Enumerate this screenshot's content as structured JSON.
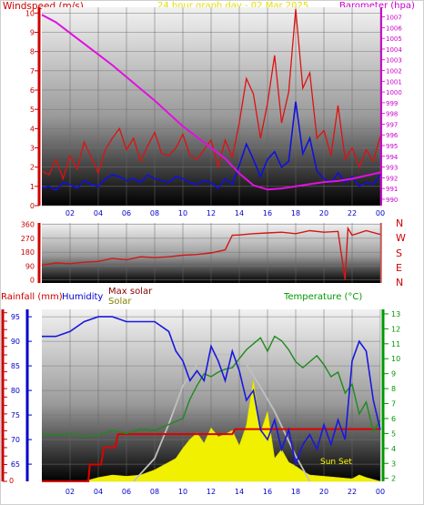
{
  "header": {
    "windspeed_label": "Windspeed (m/s)",
    "title": "24 hour graph day - 02 Mar 2025",
    "barometer_label": "Barometer (hpa)"
  },
  "compass_labels": [
    "N",
    "W",
    "S",
    "E",
    "N"
  ],
  "bottom_header": {
    "rainfall_label": "Rainfall (mm)",
    "humidity_label": "Humidity",
    "max_solar_label": "Max solar",
    "solar_label": "Solar",
    "temperature_label": "Temperature (°C)"
  },
  "sun_set_label": "Sun Set",
  "colors": {
    "wind": "#e01010",
    "gust_avg": "#1010e0",
    "barometer": "#e010e0",
    "direction": "#d01818",
    "rain": "#e00000",
    "humidity": "#1818e0",
    "temperature": "#1e8a1e",
    "solar": "#f0f000",
    "max_solar": "#c0c0c0",
    "axis_left": "#cc0000",
    "axis_right": "#cc00cc",
    "axis_time": "#0000cc",
    "temp_axis": "#009900"
  },
  "chart_data": [
    {
      "type": "line",
      "x_ticks": [
        "02",
        "04",
        "06",
        "08",
        "10",
        "12",
        "14",
        "16",
        "18",
        "20",
        "22",
        "00"
      ],
      "y_left_ticks": [
        "0",
        "1",
        "2",
        "3",
        "4",
        "5",
        "6",
        "7",
        "8",
        "9",
        "10"
      ],
      "y_left_range": [
        0,
        10.3
      ],
      "y_right_ticks": [
        "990",
        "991",
        "992",
        "993",
        "994",
        "995",
        "996",
        "997",
        "998",
        "999",
        "1000",
        "1001",
        "1002",
        "1003",
        "1004",
        "1005",
        "1006",
        "1007"
      ],
      "y_right_range": [
        989.4,
        1007.9
      ],
      "series": [
        {
          "name": "Windspeed",
          "axis": "left",
          "hours": [
            0,
            0.5,
            1,
            1.5,
            2,
            2.5,
            3,
            3.5,
            4,
            4.5,
            5,
            5.5,
            6,
            6.5,
            7,
            7.5,
            8,
            8.5,
            9,
            9.5,
            10,
            10.5,
            11,
            11.5,
            12,
            12.5,
            13,
            13.5,
            14,
            14.5,
            15,
            15.5,
            16,
            16.5,
            17,
            17.5,
            18,
            18.5,
            19,
            19.5,
            20,
            20.5,
            21,
            21.5,
            22,
            22.5,
            23,
            23.5,
            24
          ],
          "values": [
            1.8,
            1.6,
            2.4,
            1.4,
            2.6,
            1.9,
            3.3,
            2.5,
            1.7,
            2.9,
            3.5,
            4.0,
            2.9,
            3.5,
            2.3,
            3.1,
            3.8,
            2.7,
            2.6,
            3.0,
            3.7,
            2.6,
            2.4,
            2.9,
            3.4,
            2.0,
            3.4,
            2.5,
            4.3,
            6.6,
            5.8,
            3.5,
            5.3,
            7.8,
            4.3,
            5.9,
            10.2,
            6.1,
            6.9,
            3.5,
            3.9,
            2.6,
            5.2,
            2.4,
            3.0,
            2.0,
            2.9,
            2.3,
            3.6
          ]
        },
        {
          "name": "Gust",
          "axis": "left",
          "hours": [
            0,
            0.5,
            1,
            1.5,
            2,
            2.5,
            3,
            3.5,
            4,
            4.5,
            5,
            5.5,
            6,
            6.5,
            7,
            7.5,
            8,
            8.5,
            9,
            9.5,
            10,
            10.5,
            11,
            11.5,
            12,
            12.5,
            13,
            13.5,
            14,
            14.5,
            15,
            15.5,
            16,
            16.5,
            17,
            17.5,
            18,
            18.5,
            19,
            19.5,
            20,
            20.5,
            21,
            21.5,
            22,
            22.5,
            23,
            23.5,
            24
          ],
          "values": [
            0.9,
            1.0,
            0.8,
            1.2,
            1.1,
            0.9,
            1.3,
            1.1,
            1.0,
            1.4,
            1.6,
            1.5,
            1.3,
            1.4,
            1.2,
            1.6,
            1.4,
            1.3,
            1.2,
            1.5,
            1.4,
            1.2,
            1.1,
            1.3,
            1.2,
            0.9,
            1.4,
            1.1,
            2.1,
            3.2,
            2.4,
            1.5,
            2.4,
            2.8,
            2.0,
            2.3,
            5.4,
            2.7,
            3.5,
            1.8,
            1.4,
            1.2,
            1.7,
            1.2,
            1.5,
            1.0,
            1.2,
            1.1,
            1.6
          ]
        },
        {
          "name": "Barometer",
          "axis": "right",
          "hours": [
            0,
            1,
            2,
            3,
            4,
            5,
            6,
            7,
            8,
            9,
            10,
            11,
            12,
            13,
            14,
            15,
            16,
            17,
            18,
            19,
            20,
            21,
            22,
            23,
            24
          ],
          "values": [
            1007.2,
            1006.5,
            1005.5,
            1004.5,
            1003.5,
            1002.5,
            1001.4,
            1000.3,
            999.2,
            998.0,
            996.8,
            995.8,
            994.8,
            993.8,
            992.4,
            991.3,
            990.9,
            991.0,
            991.2,
            991.4,
            991.6,
            991.7,
            991.9,
            992.2,
            992.5
          ]
        }
      ]
    },
    {
      "type": "line",
      "y_ticks": [
        "0",
        "90",
        "180",
        "270",
        "360"
      ],
      "y_range": [
        -20,
        370
      ],
      "series": [
        {
          "name": "Wind direction",
          "hours": [
            0,
            1,
            2,
            3,
            4,
            5,
            6,
            7,
            8,
            9,
            10,
            11,
            12,
            13,
            13.5,
            14,
            15,
            16,
            17,
            18,
            19,
            20,
            21,
            21.5,
            21.7,
            22,
            23,
            24
          ],
          "values": [
            95,
            110,
            105,
            115,
            120,
            140,
            130,
            150,
            145,
            150,
            160,
            165,
            175,
            195,
            290,
            292,
            300,
            305,
            310,
            300,
            320,
            310,
            315,
            0,
            335,
            290,
            320,
            295
          ]
        }
      ]
    },
    {
      "type": "line",
      "rain_ticks": [
        "0",
        "0.5",
        "1",
        "1.5",
        "2",
        "2.5",
        "3",
        "3.5",
        "4",
        "4.5",
        "5",
        "5.5",
        "6",
        "6.5",
        "7",
        "7.5",
        "8",
        "8.5",
        "9",
        "9.5",
        "10"
      ],
      "rain_range": [
        0,
        10.2
      ],
      "humidity_ticks": [
        "65",
        "70",
        "75",
        "80",
        "85",
        "90",
        "95"
      ],
      "humidity_range": [
        61.5,
        96.5
      ],
      "temperature_ticks": [
        "2",
        "3",
        "4",
        "5",
        "6",
        "7",
        "8",
        "9",
        "10",
        "11",
        "12",
        "13"
      ],
      "temperature_range": [
        1.8,
        13.3
      ],
      "series": [
        {
          "name": "Rainfall",
          "axis": "rain",
          "hours": [
            0,
            3.3,
            3.4,
            4.2,
            4.4,
            5.2,
            5.4,
            13.5,
            13.7,
            24
          ],
          "values": [
            0,
            0,
            1.0,
            1.0,
            2.0,
            2.0,
            2.8,
            2.8,
            3.1,
            3.1
          ]
        },
        {
          "name": "Humidity",
          "axis": "humidity",
          "hours": [
            0,
            1,
            2,
            3,
            4,
            5,
            6,
            7,
            8,
            9,
            9.5,
            10,
            10.5,
            11,
            11.5,
            12,
            12.5,
            13,
            13.5,
            14,
            14.5,
            15,
            15.5,
            16,
            16.5,
            17,
            17.5,
            18,
            18.5,
            19,
            19.5,
            20,
            20.5,
            21,
            21.5,
            22,
            22.5,
            23,
            23.5,
            24
          ],
          "values": [
            91,
            91,
            92,
            94,
            95,
            95,
            94,
            94,
            94,
            92,
            88,
            86,
            82,
            84,
            82,
            89,
            86,
            82,
            88,
            84,
            78,
            80,
            72,
            70,
            74,
            68,
            72,
            65,
            69,
            71,
            68,
            73,
            69,
            74,
            70,
            86,
            90,
            88,
            78,
            72
          ]
        },
        {
          "name": "Temperature",
          "axis": "temperature",
          "hours": [
            0,
            1,
            2,
            3,
            4,
            5,
            6,
            7,
            8,
            9,
            10,
            10.5,
            11,
            11.5,
            12,
            12.5,
            13,
            13.5,
            14,
            14.5,
            15,
            15.5,
            16,
            16.5,
            17,
            17.5,
            18,
            18.5,
            19,
            19.5,
            20,
            20.5,
            21,
            21.5,
            22,
            22.5,
            23,
            23.5,
            24
          ],
          "values": [
            5.0,
            4.9,
            5.0,
            4.8,
            4.9,
            5.2,
            5.0,
            5.3,
            5.2,
            5.6,
            6.0,
            7.3,
            8.2,
            9.0,
            8.8,
            9.1,
            9.3,
            9.4,
            10.0,
            10.6,
            11.0,
            11.4,
            10.5,
            11.5,
            11.2,
            10.6,
            9.8,
            9.4,
            9.8,
            10.2,
            9.6,
            8.8,
            9.1,
            7.7,
            8.3,
            6.3,
            7.1,
            5.1,
            5.9
          ]
        },
        {
          "name": "Max solar",
          "axis": "solar_relative",
          "hours": [
            6.5,
            8,
            9,
            10,
            11,
            12,
            12.7,
            13.5,
            14.5,
            15.5,
            16.5,
            18,
            19
          ],
          "values": [
            0,
            0.18,
            0.45,
            0.75,
            0.92,
            0.99,
            1.0,
            0.99,
            0.92,
            0.74,
            0.55,
            0.2,
            0
          ]
        },
        {
          "name": "Solar",
          "axis": "solar_relative",
          "hours": [
            3,
            4,
            5,
            6,
            7,
            8,
            8.5,
            9,
            9.5,
            10,
            10.5,
            11,
            11.5,
            12,
            12.5,
            13,
            13.5,
            14,
            14.5,
            15,
            15.5,
            16,
            16.5,
            17,
            17.5,
            18,
            18.5,
            19,
            20,
            21,
            22,
            22.5,
            23,
            24
          ],
          "values": [
            0,
            0.03,
            0.05,
            0.04,
            0.05,
            0.09,
            0.12,
            0.15,
            0.18,
            0.26,
            0.33,
            0.38,
            0.3,
            0.42,
            0.35,
            0.37,
            0.4,
            0.28,
            0.44,
            0.8,
            0.38,
            0.55,
            0.18,
            0.25,
            0.15,
            0.12,
            0.08,
            0.05,
            0.04,
            0.03,
            0.02,
            0.05,
            0.03,
            0.0
          ]
        }
      ]
    }
  ]
}
